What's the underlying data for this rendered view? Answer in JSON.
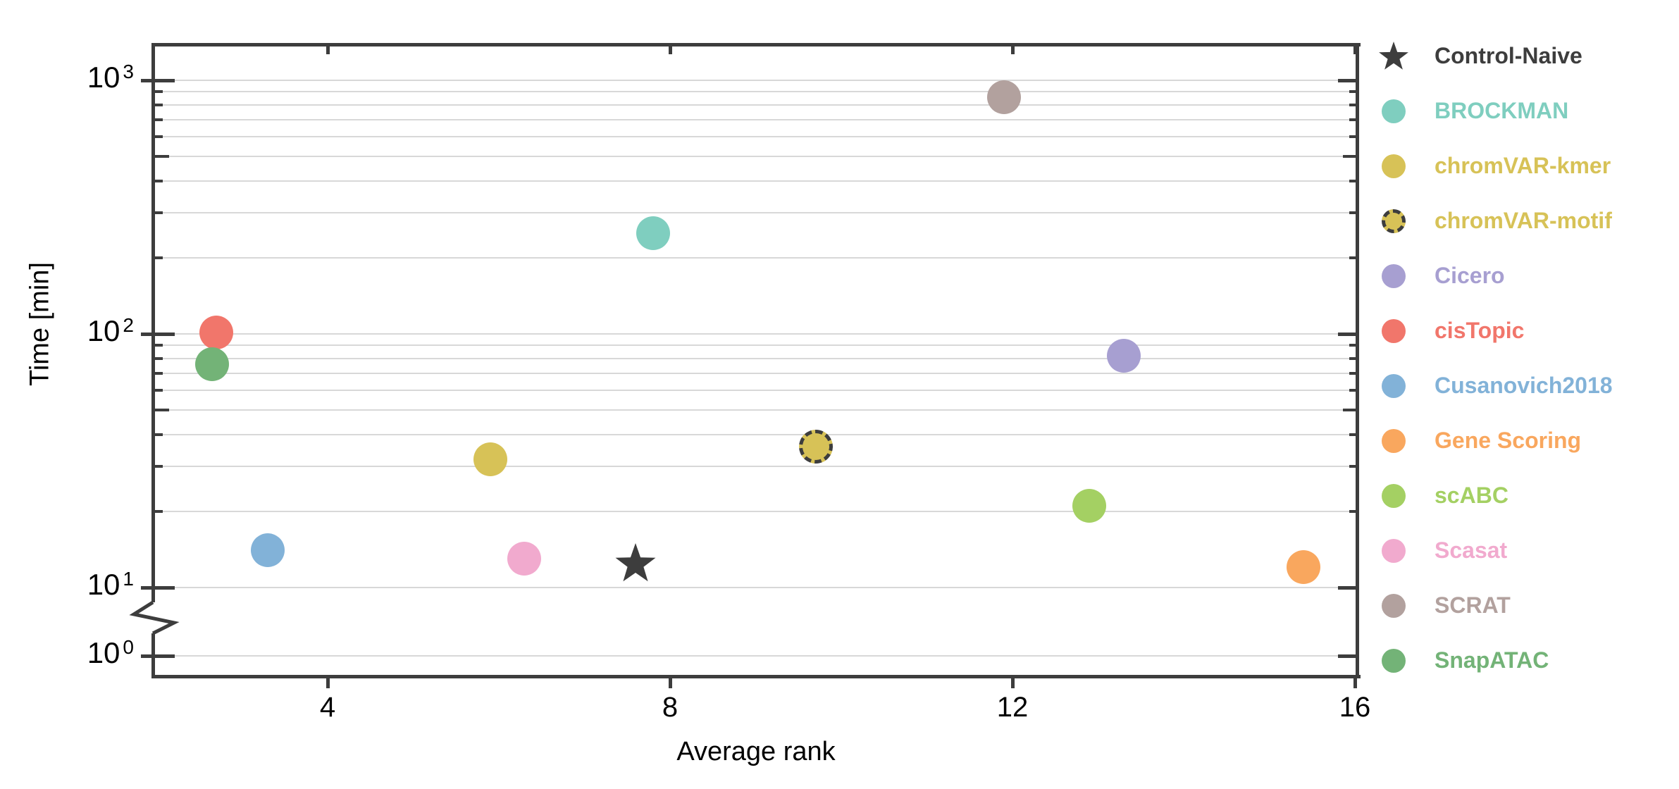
{
  "figure": {
    "background": "#ffffff",
    "axis_color": "#3d3d3d",
    "grid_color": "#d8d8d8",
    "text_color": "#000000"
  },
  "chart_data": {
    "type": "scatter",
    "title": "",
    "xlabel": "Average rank",
    "ylabel": "Time [min]",
    "x_axis": {
      "scale": "linear",
      "range_approx": [
        2.0,
        16.1
      ],
      "ticks": [
        {
          "label": "4",
          "value": 4
        },
        {
          "label": "8",
          "value": 8
        },
        {
          "label": "12",
          "value": 12
        },
        {
          "label": "16",
          "value": 16
        }
      ]
    },
    "y_axis": {
      "scale": "log10",
      "unit": "min",
      "range_approx": [
        1,
        1400
      ],
      "axis_break_between": [
        1,
        10
      ],
      "ticks": [
        {
          "base": "10",
          "exp": "3",
          "value": 1000
        },
        {
          "base": "10",
          "exp": "2",
          "value": 100
        },
        {
          "base": "10",
          "exp": "1",
          "value": 10
        },
        {
          "base": "10",
          "exp": "0",
          "value": 1
        }
      ],
      "minor_gridline_values": [
        20,
        30,
        40,
        50,
        60,
        70,
        80,
        90,
        200,
        300,
        400,
        500,
        600,
        700,
        800,
        900
      ],
      "major_gridline_values": [
        10,
        100,
        1000
      ]
    },
    "grid": {
      "horizontal_only": true,
      "on": true
    },
    "legend_position": "right-outside",
    "series": [
      {
        "name": "Control-Naive",
        "marker": "star",
        "color": "#3d3d3d",
        "rank": 7.6,
        "time_min": 12.5
      },
      {
        "name": "BROCKMAN",
        "marker": "circle",
        "color": "#7fcebf",
        "rank": 7.8,
        "time_min": 250
      },
      {
        "name": "chromVAR-kmer",
        "marker": "circle",
        "color": "#d7c257",
        "rank": 5.9,
        "time_min": 32
      },
      {
        "name": "chromVAR-motif",
        "marker": "circle-dashed-outline",
        "color": "#d7c257",
        "rank": 9.7,
        "time_min": 36
      },
      {
        "name": "Cicero",
        "marker": "circle",
        "color": "#a79fd1",
        "rank": 13.3,
        "time_min": 82
      },
      {
        "name": "cisTopic",
        "marker": "circle",
        "color": "#f1766b",
        "rank": 2.7,
        "time_min": 101
      },
      {
        "name": "Cusanovich2018",
        "marker": "circle",
        "color": "#82b2d8",
        "rank": 3.3,
        "time_min": 14
      },
      {
        "name": "Gene Scoring",
        "marker": "circle",
        "color": "#f9a75e",
        "rank": 15.4,
        "time_min": 12
      },
      {
        "name": "scABC",
        "marker": "circle",
        "color": "#a4d063",
        "rank": 12.9,
        "time_min": 21
      },
      {
        "name": "Scasat",
        "marker": "circle",
        "color": "#f1aace",
        "rank": 6.3,
        "time_min": 13
      },
      {
        "name": "SCRAT",
        "marker": "circle",
        "color": "#b2a19e",
        "rank": 11.9,
        "time_min": 860
      },
      {
        "name": "SnapATAC",
        "marker": "circle",
        "color": "#73b377",
        "rank": 2.65,
        "time_min": 76
      }
    ]
  }
}
